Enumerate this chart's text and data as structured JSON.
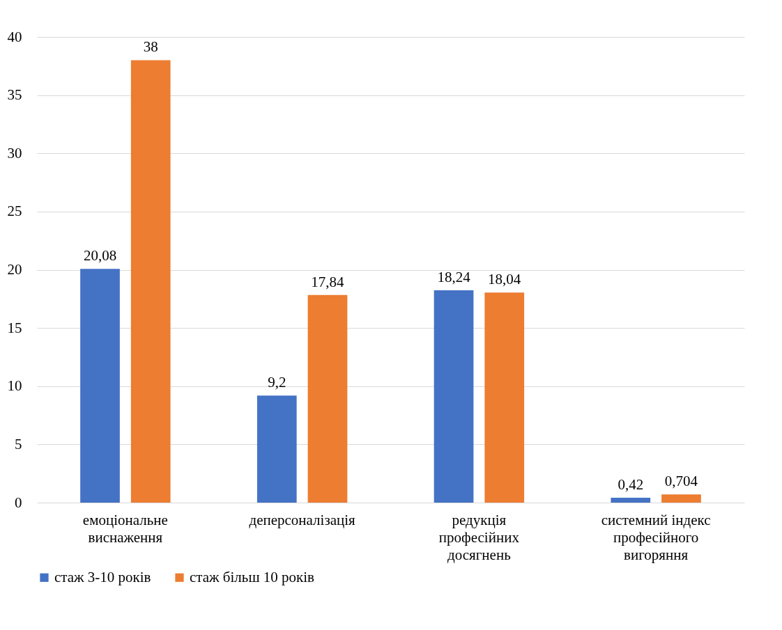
{
  "chart_data": {
    "type": "bar",
    "categories": [
      "емоціональне виснаження",
      "деперсоналізація",
      "редукція професійних досягнень",
      "системний індекс професійного вигоряння"
    ],
    "series": [
      {
        "name": "стаж 3-10 років",
        "color": "#4472c4",
        "values": [
          20.08,
          9.2,
          18.24,
          0.42
        ],
        "value_labels": [
          "20,08",
          "9,2",
          "18,24",
          "0,42"
        ]
      },
      {
        "name": "стаж більш 10 років",
        "color": "#ed7d31",
        "values": [
          38,
          17.84,
          18.04,
          0.704
        ],
        "value_labels": [
          "38",
          "17,84",
          "18,04",
          "0,704"
        ]
      }
    ],
    "ylim": [
      0,
      40
    ],
    "yticks": [
      0,
      5,
      10,
      15,
      20,
      25,
      30,
      35,
      40
    ],
    "grid": "y",
    "legend": "bottom"
  }
}
